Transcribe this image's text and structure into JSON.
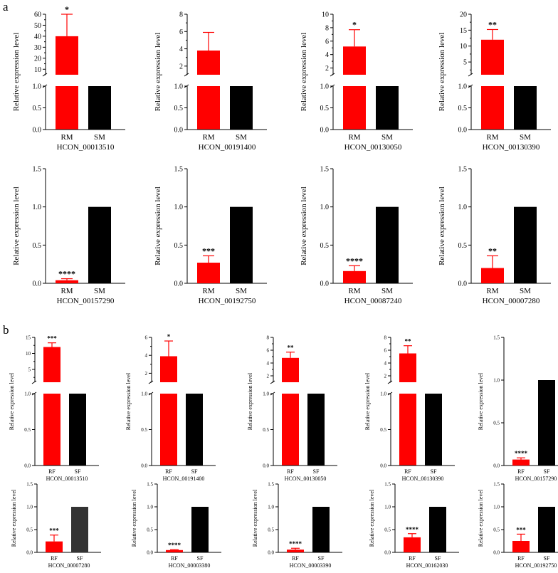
{
  "panels": [
    {
      "letter": "a"
    },
    {
      "letter": "b"
    }
  ],
  "colors": {
    "red": "#ff0000",
    "black": "#000000",
    "darkgray": "#333333",
    "axis": "#000000"
  },
  "chart_data": [
    {
      "type": "bar",
      "panel": "a",
      "title": "",
      "xlabel": "HCON_00013510",
      "ylabel": "Relative expression level",
      "categories": [
        "RM",
        "SM"
      ],
      "values": [
        40,
        1
      ],
      "errors": [
        20,
        0
      ],
      "significance": "*",
      "broken_axis": true,
      "lower_ticks": [
        "0.0",
        "0.5",
        "1.0"
      ],
      "upper_ticks": [
        "10",
        "20",
        "30",
        "40",
        "50",
        "60"
      ],
      "upper_range": [
        5,
        60
      ]
    },
    {
      "type": "bar",
      "panel": "a",
      "title": "",
      "xlabel": "HCON_00191400",
      "ylabel": "Relative expression level",
      "categories": [
        "RM",
        "SM"
      ],
      "values": [
        3.8,
        1
      ],
      "errors": [
        2.1,
        0
      ],
      "significance": "",
      "broken_axis": true,
      "lower_ticks": [
        "0.0",
        "0.5",
        "1.0"
      ],
      "upper_ticks": [
        "2",
        "4",
        "6",
        "8"
      ],
      "upper_range": [
        1,
        8
      ]
    },
    {
      "type": "bar",
      "panel": "a",
      "title": "",
      "xlabel": "HCON_00130050",
      "ylabel": "Relative expression level",
      "categories": [
        "RM",
        "SM"
      ],
      "values": [
        5.2,
        1
      ],
      "errors": [
        2.5,
        0
      ],
      "significance": "*",
      "broken_axis": true,
      "lower_ticks": [
        "0.0",
        "0.5",
        "1.0"
      ],
      "upper_ticks": [
        "2",
        "4",
        "6",
        "8",
        "10"
      ],
      "upper_range": [
        1,
        10
      ]
    },
    {
      "type": "bar",
      "panel": "a",
      "title": "",
      "xlabel": "HCON_00130390",
      "ylabel": "Relative expression level",
      "categories": [
        "RM",
        "SM"
      ],
      "values": [
        12,
        1
      ],
      "errors": [
        3.2,
        0
      ],
      "significance": "**",
      "broken_axis": true,
      "lower_ticks": [
        "0.0",
        "0.5",
        "1.0"
      ],
      "upper_ticks": [
        "5",
        "10",
        "15",
        "20"
      ],
      "upper_range": [
        1,
        20
      ]
    },
    {
      "type": "bar",
      "panel": "a",
      "title": "",
      "xlabel": "HCON_00157290",
      "ylabel": "Relative expression level",
      "categories": [
        "RM",
        "SM"
      ],
      "values": [
        0.04,
        1
      ],
      "errors": [
        0.02,
        0
      ],
      "significance": "****",
      "broken_axis": false,
      "ticks": [
        "0.0",
        "0.5",
        "1.0",
        "1.5"
      ],
      "ylim": [
        0,
        1.5
      ]
    },
    {
      "type": "bar",
      "panel": "a",
      "title": "",
      "xlabel": "HCON_00192750",
      "ylabel": "Relative expression level",
      "categories": [
        "RM",
        "SM"
      ],
      "values": [
        0.27,
        1
      ],
      "errors": [
        0.09,
        0
      ],
      "significance": "***",
      "broken_axis": false,
      "ticks": [
        "0.0",
        "0.5",
        "1.0",
        "1.5"
      ],
      "ylim": [
        0,
        1.5
      ]
    },
    {
      "type": "bar",
      "panel": "a",
      "title": "",
      "xlabel": "HCON_00087240",
      "ylabel": "Relative expression level",
      "categories": [
        "RM",
        "SM"
      ],
      "values": [
        0.16,
        1
      ],
      "errors": [
        0.07,
        0
      ],
      "significance": "****",
      "broken_axis": false,
      "ticks": [
        "0.0",
        "0.5",
        "1.0",
        "1.5"
      ],
      "ylim": [
        0,
        1.5
      ]
    },
    {
      "type": "bar",
      "panel": "a",
      "title": "",
      "xlabel": "HCON_00007280",
      "ylabel": "Relative expression level",
      "categories": [
        "RM",
        "SM"
      ],
      "values": [
        0.2,
        1
      ],
      "errors": [
        0.16,
        0
      ],
      "significance": "**",
      "broken_axis": false,
      "ticks": [
        "0.0",
        "0.5",
        "1.0",
        "1.5"
      ],
      "ylim": [
        0,
        1.5
      ]
    },
    {
      "type": "bar",
      "panel": "b",
      "title": "",
      "xlabel": "HCON_00013510",
      "ylabel": "Relative expression level",
      "categories": [
        "RF",
        "SF"
      ],
      "values": [
        12,
        1
      ],
      "errors": [
        1.3,
        0
      ],
      "significance": "***",
      "broken_axis": true,
      "lower_ticks": [
        "0.0",
        "0.5",
        "1.0"
      ],
      "upper_ticks": [
        "5",
        "10",
        "15"
      ],
      "upper_range": [
        1,
        15
      ]
    },
    {
      "type": "bar",
      "panel": "b",
      "title": "",
      "xlabel": "HCON_00191400",
      "ylabel": "Relative expression level",
      "categories": [
        "RF",
        "SF"
      ],
      "values": [
        3.9,
        1
      ],
      "errors": [
        1.7,
        0
      ],
      "significance": "*",
      "broken_axis": true,
      "lower_ticks": [
        "0.0",
        "0.5",
        "1.0"
      ],
      "upper_ticks": [
        "2",
        "4",
        "6"
      ],
      "upper_range": [
        1,
        6
      ]
    },
    {
      "type": "bar",
      "panel": "b",
      "title": "",
      "xlabel": "HCON_00130050",
      "ylabel": "Relative expression level",
      "categories": [
        "RF",
        "SF"
      ],
      "values": [
        4.8,
        1
      ],
      "errors": [
        0.9,
        0
      ],
      "significance": "**",
      "broken_axis": true,
      "lower_ticks": [
        "0.0",
        "0.5",
        "1.0"
      ],
      "upper_ticks": [
        "2",
        "4",
        "6",
        "8"
      ],
      "upper_range": [
        1,
        8
      ]
    },
    {
      "type": "bar",
      "panel": "b",
      "title": "",
      "xlabel": "HCON_00130390",
      "ylabel": "Relative expression level",
      "categories": [
        "RF",
        "SF"
      ],
      "values": [
        5.5,
        1
      ],
      "errors": [
        1.2,
        0
      ],
      "significance": "**",
      "broken_axis": true,
      "lower_ticks": [
        "0.0",
        "0.5",
        "1.0"
      ],
      "upper_ticks": [
        "2",
        "4",
        "6",
        "8"
      ],
      "upper_range": [
        1,
        8
      ]
    },
    {
      "type": "bar",
      "panel": "b",
      "title": "",
      "xlabel": "HCON_00157290",
      "ylabel": "Relative expression level",
      "categories": [
        "RF",
        "SF"
      ],
      "values": [
        0.07,
        1
      ],
      "errors": [
        0.02,
        0
      ],
      "significance": "****",
      "broken_axis": false,
      "ticks": [
        "0.0",
        "0.5",
        "1.0",
        "1.5"
      ],
      "ylim": [
        0,
        1.5
      ]
    },
    {
      "type": "bar",
      "panel": "b",
      "title": "",
      "xlabel": "HCON_00007280",
      "ylabel": "Relative expression level",
      "categories": [
        "RF",
        "SF"
      ],
      "values": [
        0.24,
        1
      ],
      "errors": [
        0.14,
        0
      ],
      "significance": "***",
      "broken_axis": false,
      "ticks": [
        "0.0",
        "0.5",
        "1.0",
        "1.5"
      ],
      "ylim": [
        0,
        1.5
      ],
      "bar2_color": "darkgray"
    },
    {
      "type": "bar",
      "panel": "b",
      "title": "",
      "xlabel": "HCON_00003380",
      "ylabel": "Relative expression level",
      "categories": [
        "RF",
        "SF"
      ],
      "values": [
        0.05,
        1
      ],
      "errors": [
        0.01,
        0
      ],
      "significance": "****",
      "broken_axis": false,
      "ticks": [
        "0.0",
        "0.5",
        "1.0",
        "1.5"
      ],
      "ylim": [
        0,
        1.5
      ]
    },
    {
      "type": "bar",
      "panel": "b",
      "title": "",
      "xlabel": "HCON_00003390",
      "ylabel": "Relative expression level",
      "categories": [
        "RF",
        "SF"
      ],
      "values": [
        0.06,
        1
      ],
      "errors": [
        0.03,
        0
      ],
      "significance": "****",
      "broken_axis": false,
      "ticks": [
        "0.0",
        "0.5",
        "1.0",
        "1.5"
      ],
      "ylim": [
        0,
        1.5
      ]
    },
    {
      "type": "bar",
      "panel": "b",
      "title": "",
      "xlabel": "HCON_00162030",
      "ylabel": "Relative expression level",
      "categories": [
        "RF",
        "SF"
      ],
      "values": [
        0.33,
        1
      ],
      "errors": [
        0.08,
        0
      ],
      "significance": "****",
      "broken_axis": false,
      "ticks": [
        "0.0",
        "0.5",
        "1.0",
        "1.5"
      ],
      "ylim": [
        0,
        1.5
      ]
    },
    {
      "type": "bar",
      "panel": "b",
      "title": "",
      "xlabel": "HCON_00192750",
      "ylabel": "Relative expression level",
      "categories": [
        "RF",
        "SF"
      ],
      "values": [
        0.25,
        1
      ],
      "errors": [
        0.15,
        0
      ],
      "significance": "***",
      "broken_axis": false,
      "ticks": [
        "0.0",
        "0.5",
        "1.0",
        "1.5"
      ],
      "ylim": [
        0,
        1.5
      ]
    }
  ]
}
